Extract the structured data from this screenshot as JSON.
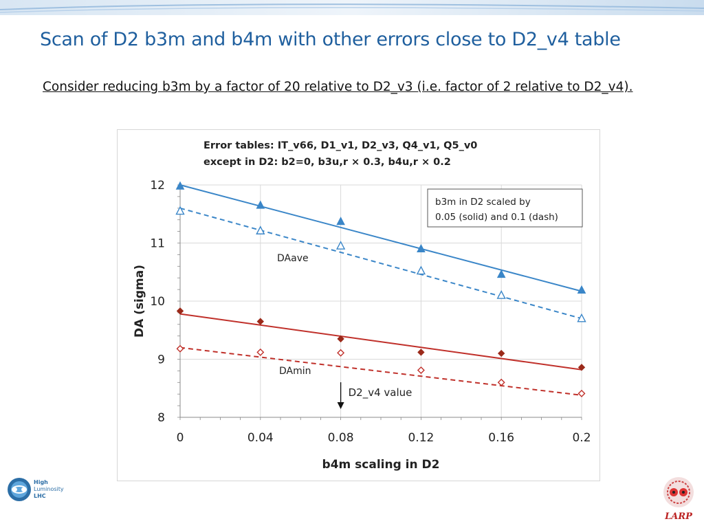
{
  "slide": {
    "title": "Scan of D2 b3m and b4m with other errors close to D2_v4 table",
    "subtitle": "Consider reducing b3m by a factor of 20 relative to D2_v3 (i.e. factor of 2 relative to D2_v4)."
  },
  "logos": {
    "left": {
      "line1": "High",
      "line2": "Luminosity",
      "line3": "LHC"
    },
    "right": {
      "text": "LARP"
    }
  },
  "colors": {
    "title": "#1f5f9e",
    "blue": "#3a86c8",
    "red": "#c0302a",
    "marker_red": "#9b2a1a"
  },
  "chart_data": {
    "type": "line",
    "header_lines": [
      "Error tables:  IT_v66,  D1_v1,  D2_v3,  Q4_v1,  Q5_v0",
      "except in D2:  b2=0,  b3u,r × 0.3,   b4u,r × 0.2"
    ],
    "legend_lines": [
      "b3m in D2 scaled by",
      "0.05 (solid) and 0.1 (dash)"
    ],
    "xlabel": "b4m scaling in D2",
    "ylabel": "DA (sigma)",
    "xlim": [
      0,
      0.2
    ],
    "ylim": [
      8,
      12
    ],
    "x_ticks": [
      0,
      0.04,
      0.08,
      0.12,
      0.16,
      0.2
    ],
    "x_tick_labels": [
      "0",
      "0.04",
      "0.08",
      "0.12",
      "0.16",
      "0.2"
    ],
    "y_ticks": [
      8,
      9,
      10,
      11,
      12
    ],
    "y_tick_labels": [
      "8",
      "9",
      "10",
      "11",
      "12"
    ],
    "grid": true,
    "annotations": {
      "daave": "DAave",
      "damin": "DAmin",
      "marker_label": "D2_v4 value",
      "marker_x": 0.08
    },
    "series": [
      {
        "group": "DAave",
        "style": "solid",
        "marker": "filled-triangle",
        "color": "#3a86c8",
        "x": [
          0,
          0.04,
          0.08,
          0.12,
          0.16,
          0.2
        ],
        "y": [
          11.98,
          11.65,
          11.37,
          10.9,
          10.46,
          10.19
        ],
        "fit": [
          12.0,
          10.17
        ]
      },
      {
        "group": "DAave",
        "style": "dash",
        "marker": "open-triangle",
        "color": "#3a86c8",
        "x": [
          0,
          0.04,
          0.08,
          0.12,
          0.16,
          0.2
        ],
        "y": [
          11.55,
          11.21,
          10.95,
          10.52,
          10.1,
          9.7
        ],
        "fit": [
          11.6,
          9.7
        ]
      },
      {
        "group": "DAmin",
        "style": "solid",
        "marker": "filled-diamond",
        "color": "#c0302a",
        "x": [
          0,
          0.04,
          0.08,
          0.12,
          0.16,
          0.2
        ],
        "y": [
          9.83,
          9.65,
          9.35,
          9.12,
          9.1,
          8.86
        ],
        "fit": [
          9.78,
          8.82
        ]
      },
      {
        "group": "DAmin",
        "style": "dash",
        "marker": "open-diamond",
        "color": "#c0302a",
        "x": [
          0,
          0.04,
          0.08,
          0.12,
          0.16,
          0.2
        ],
        "y": [
          9.18,
          9.12,
          9.11,
          8.81,
          8.6,
          8.41
        ],
        "fit": [
          9.2,
          8.38
        ]
      }
    ]
  }
}
